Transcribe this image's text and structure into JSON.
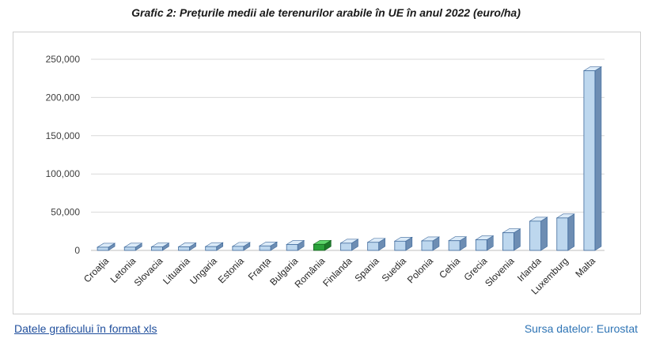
{
  "title": "Grafic 2: Prețurile medii ale terenurilor arabile în UE în anul 2022 (euro/ha)",
  "link_label": "Datele graficului în format xls",
  "source_label": "Sursa datelor: Eurostat",
  "chart_data": {
    "type": "bar",
    "title": "Grafic 2: Prețurile medii ale terenurilor arabile în UE în anul 2022 (euro/ha)",
    "xlabel": "",
    "ylabel": "",
    "ylim": [
      0,
      250000
    ],
    "yticks": [
      0,
      50000,
      100000,
      150000,
      200000,
      250000
    ],
    "ytick_labels": [
      "0",
      "50,000",
      "100,000",
      "150,000",
      "200,000",
      "250,000"
    ],
    "grid": true,
    "legend": "none",
    "categories": [
      "Croația",
      "Letonia",
      "Slovacia",
      "Lituania",
      "Ungaria",
      "Estonia",
      "Franța",
      "Bulgaria",
      "România",
      "Finlanda",
      "Spania",
      "Suedia",
      "Polonia",
      "Cehia",
      "Grecia",
      "Slovenia",
      "Irlanda",
      "Luxemburg",
      "Malta"
    ],
    "values": [
      4200,
      4300,
      4500,
      4700,
      5000,
      5300,
      5900,
      7800,
      8000,
      9500,
      10600,
      12100,
      12500,
      12700,
      14000,
      23100,
      38300,
      42500,
      235000
    ],
    "highlight": "România",
    "colors": {
      "bar": "#bdd7ee",
      "bar_side": "#6d8db3",
      "bar_top": "#dcebf8",
      "bar_edge": "#3f6a9c",
      "highlight": "#2aa13a",
      "highlight_side": "#1d7a2b",
      "highlight_top": "#5fd66c",
      "grid": "#d9d9d9"
    }
  }
}
